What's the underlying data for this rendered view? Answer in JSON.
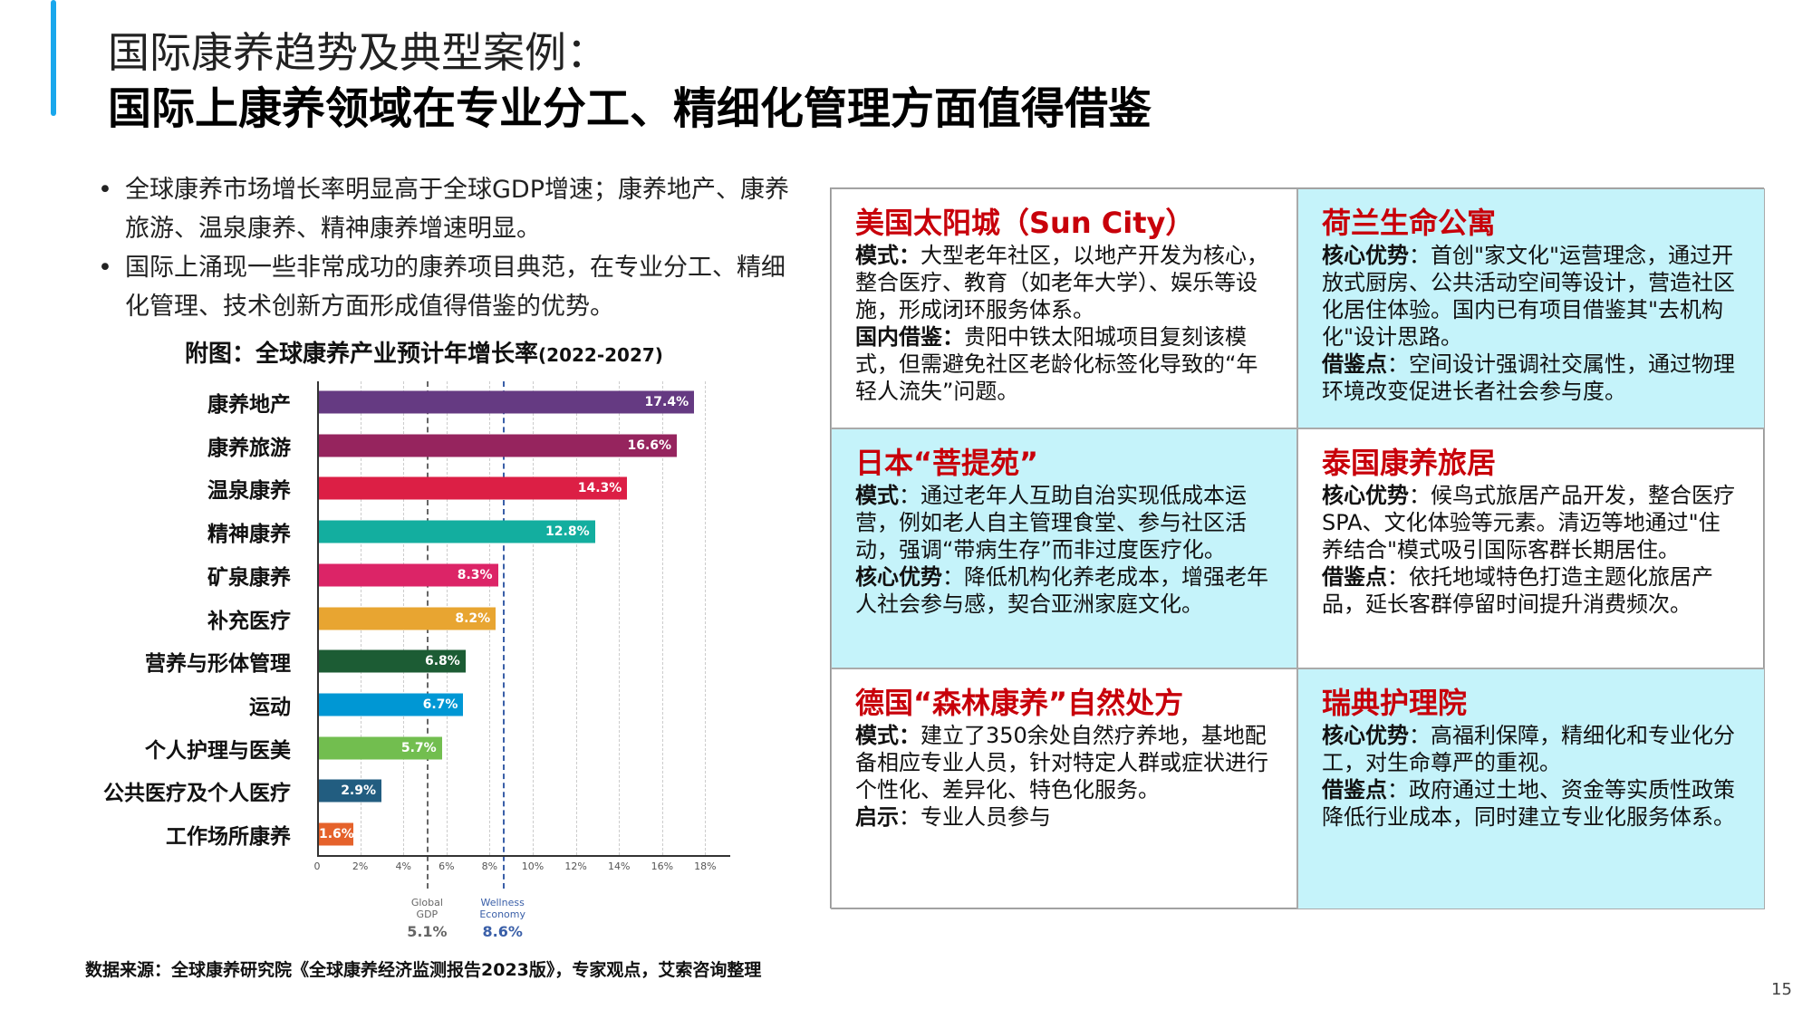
{
  "header": {
    "title_line1": "国际康养趋势及典型案例：",
    "title_line2": "国际上康养领域在专业分工、精细化管理方面值得借鉴"
  },
  "bullets": [
    "全球康养市场增长率明显高于全球GDP增速；康养地产、康养旅游、温泉康养、精神康养增速明显。",
    "国际上涌现一些非常成功的康养项目典范，在专业分工、精细化管理、技术创新方面形成值得借鉴的优势。"
  ],
  "chart_data": {
    "type": "bar",
    "orientation": "horizontal",
    "title": "附图：全球康养产业预计年增长率",
    "subtitle": "(2022-2027)",
    "categories": [
      "康养地产",
      "康养旅游",
      "温泉康养",
      "精神康养",
      "矿泉康养",
      "补充医疗",
      "营养与形体管理",
      "运动",
      "个人护理与医美",
      "公共医疗及个人医疗",
      "工作场所康养"
    ],
    "values": [
      17.4,
      16.6,
      14.3,
      12.8,
      8.3,
      8.2,
      6.8,
      6.7,
      5.7,
      2.9,
      1.6
    ],
    "labels": [
      "17.4%",
      "16.6%",
      "14.3%",
      "12.8%",
      "8.3%",
      "8.2%",
      "6.8%",
      "6.7%",
      "5.7%",
      "2.9%",
      "1.6%"
    ],
    "colors": [
      "#653a82",
      "#96245e",
      "#dc1f45",
      "#13ae9f",
      "#dc2467",
      "#e8a531",
      "#1c5c34",
      "#0097d4",
      "#72be4f",
      "#225d80",
      "#e5622b"
    ],
    "xlim": [
      0,
      18
    ],
    "ticks": [
      "0",
      "2%",
      "4%",
      "6%",
      "8%",
      "10%",
      "12%",
      "14%",
      "16%",
      "18%"
    ],
    "grid": true,
    "reference_lines": [
      {
        "label_line1": "Global",
        "label_line2": "GDP",
        "value": 5.1,
        "value_label": "5.1%",
        "color": "#666666"
      },
      {
        "label_line1": "Wellness",
        "label_line2": "Economy",
        "value": 8.6,
        "value_label": "8.6%",
        "color": "#3a5fa8"
      }
    ]
  },
  "cards": [
    {
      "title": "美国太阳城（Sun City）",
      "rows": [
        {
          "k": "模式：",
          "v": "大型老年社区，以地产开发为核心，整合医疗、教育（如老年大学）、娱乐等设施，形成闭环服务体系。"
        },
        {
          "k": "国内借鉴：",
          "v": "贵阳中铁太阳城项目复刻该模式，但需避免社区老龄化标签化导致的“年轻人流失”问题。"
        }
      ]
    },
    {
      "title": "荷兰生命公寓",
      "rows": [
        {
          "k": "核心优势",
          "v": "：首创\"家文化\"运营理念，通过开放式厨房、公共活动空间等设计，营造社区化居住体验。国内已有项目借鉴其\"去机构化\"设计思路。"
        },
        {
          "k": "借鉴点",
          "v": "：空间设计强调社交属性，通过物理环境改变促进长者社会参与度。"
        }
      ]
    },
    {
      "title": "日本“菩提苑”",
      "rows": [
        {
          "k": "模式",
          "v": "：通过老年人互助自治实现低成本运营，例如老人自主管理食堂、参与社区活动，强调“带病生存”而非过度医疗化。"
        },
        {
          "k": "核心优势",
          "v": "：降低机构化养老成本，增强老年人社会参与感，契合亚洲家庭文化。"
        }
      ]
    },
    {
      "title": "泰国康养旅居",
      "rows": [
        {
          "k": "核心优势",
          "v": "：候鸟式旅居产品开发，整合医疗SPA、文化体验等元素。清迈等地通过\"住养结合\"模式吸引国际客群长期居住。"
        },
        {
          "k": "借鉴点",
          "v": "：依托地域特色打造主题化旅居产品，延长客群停留时间提升消费频次。"
        }
      ]
    },
    {
      "title": "德国“森林康养”自然处方",
      "rows": [
        {
          "k": "模式：",
          "v": "建立了350余处自然疗养地，基地配备相应专业人员，针对特定人群或症状进行个性化、差异化、特色化服务。"
        },
        {
          "k": "启示",
          "v": "：专业人员参与"
        }
      ]
    },
    {
      "title": "瑞典护理院",
      "rows": [
        {
          "k": "核心优势",
          "v": "：高福利保障，精细化和专业化分工，对生命尊严的重视。"
        },
        {
          "k": "借鉴点",
          "v": "：政府通过土地、资金等实质性政策降低行业成本，同时建立专业化服务体系。"
        }
      ]
    }
  ],
  "source": "数据来源：全球康养研究院《全球康养经济监测报告2023版》，专家观点，艾索咨询整理",
  "page_number": "15",
  "colors": {
    "accent": "#1aa7ec",
    "card_title": "#c8000a",
    "card_cyan": "#c5f3fa"
  }
}
